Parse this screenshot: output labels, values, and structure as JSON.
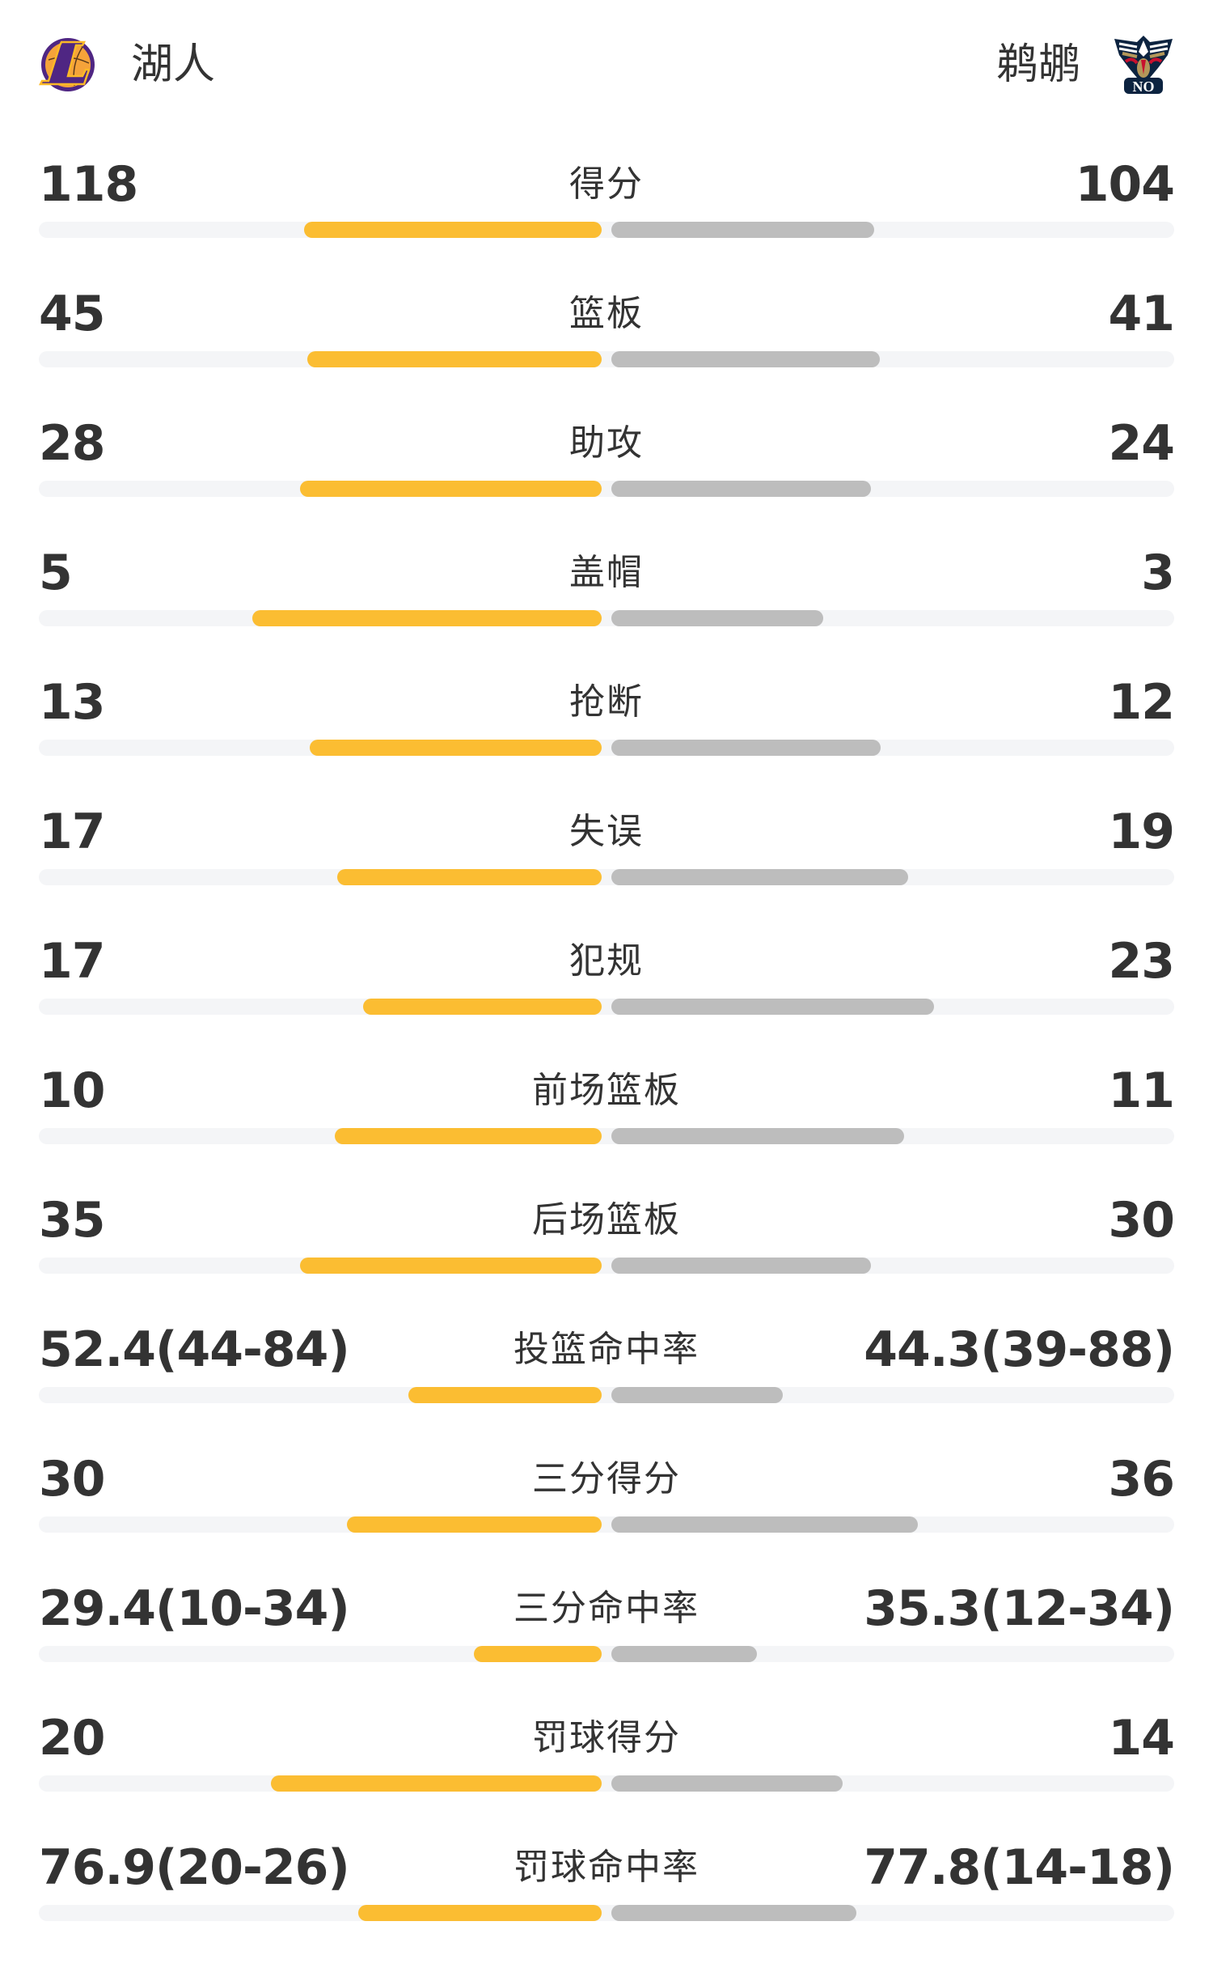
{
  "header": {
    "home": {
      "name": "湖人",
      "logo_icon": "lakers-logo"
    },
    "away": {
      "name": "鹈鹕",
      "logo_icon": "pelicans-logo",
      "logo_text": "NO"
    }
  },
  "colors": {
    "home_bar": "#fbbd32",
    "away_bar": "#bdbdbd",
    "track": "#f4f5f7",
    "text": "#333333"
  },
  "stats": [
    {
      "label": "得分",
      "home": "118",
      "away": "104",
      "home_fill": 53.1,
      "away_fill": 46.9
    },
    {
      "label": "篮板",
      "home": "45",
      "away": "41",
      "home_fill": 52.4,
      "away_fill": 47.8
    },
    {
      "label": "助攻",
      "home": "28",
      "away": "24",
      "home_fill": 53.7,
      "away_fill": 46.3
    },
    {
      "label": "盖帽",
      "home": "5",
      "away": "3",
      "home_fill": 62.3,
      "away_fill": 37.7
    },
    {
      "label": "抢断",
      "home": "13",
      "away": "12",
      "home_fill": 52.0,
      "away_fill": 48.0
    },
    {
      "label": "失误",
      "home": "17",
      "away": "19",
      "home_fill": 47.1,
      "away_fill": 52.9
    },
    {
      "label": "犯规",
      "home": "17",
      "away": "23",
      "home_fill": 42.5,
      "away_fill": 57.5
    },
    {
      "label": "前场篮板",
      "home": "10",
      "away": "11",
      "home_fill": 47.6,
      "away_fill": 52.2
    },
    {
      "label": "后场篮板",
      "home": "35",
      "away": "30",
      "home_fill": 53.7,
      "away_fill": 46.3
    },
    {
      "label": "投篮命中率",
      "home": "52.4(44-84)",
      "away": "44.3(39-88)",
      "home_fill": 34.4,
      "away_fill": 30.6
    },
    {
      "label": "三分得分",
      "home": "30",
      "away": "36",
      "home_fill": 45.4,
      "away_fill": 54.6
    },
    {
      "label": "三分命中率",
      "home": "29.4(10-34)",
      "away": "35.3(12-34)",
      "home_fill": 22.7,
      "away_fill": 26.0
    },
    {
      "label": "罚球得分",
      "home": "20",
      "away": "14",
      "home_fill": 59.0,
      "away_fill": 41.2
    },
    {
      "label": "罚球命中率",
      "home": "76.9(20-26)",
      "away": "77.8(14-18)",
      "home_fill": 43.4,
      "away_fill": 43.6
    }
  ]
}
